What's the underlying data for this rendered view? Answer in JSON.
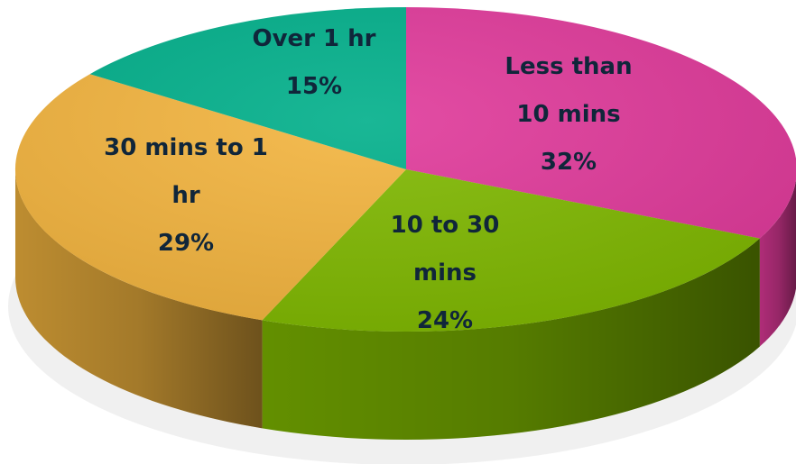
{
  "chart_data": {
    "type": "pie",
    "title": "",
    "series": [
      {
        "values": [
          32,
          24,
          29,
          15
        ],
        "categories": [
          "Less than 10 mins",
          "10 to 30 mins",
          "30 mins to 1 hr",
          "Over 1 hr"
        ]
      }
    ],
    "slices": [
      {
        "label_lines": [
          "Less than",
          "10 mins"
        ],
        "percent_label": "32%",
        "value": 32,
        "color": "#E0399A"
      },
      {
        "label_lines": [
          "10 to 30",
          "mins"
        ],
        "percent_label": "24%",
        "value": 24,
        "color": "#7FB800"
      },
      {
        "label_lines": [
          "30 mins to 1",
          "hr"
        ],
        "percent_label": "29%",
        "value": 29,
        "color": "#F3B43E"
      },
      {
        "label_lines": [
          "Over 1 hr"
        ],
        "percent_label": "15%",
        "value": 15,
        "color": "#00AF8A"
      }
    ],
    "style": "3d-pie",
    "legend": "none",
    "data_labels": "inside"
  }
}
